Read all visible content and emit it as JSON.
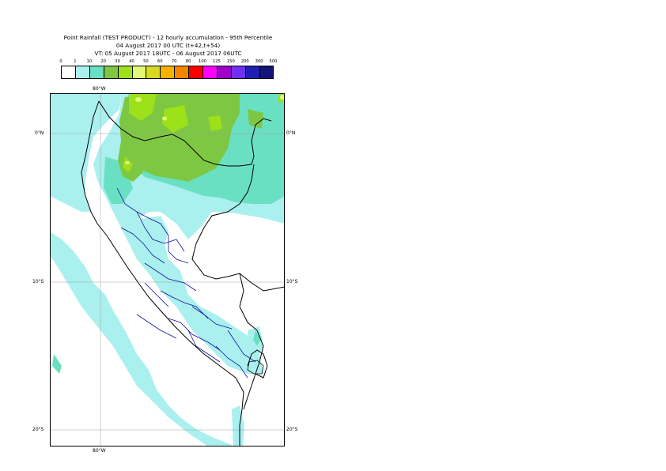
{
  "header": {
    "line1": "Point Rainfall (TEST PRODUCT) - 12 hourly accumulation - 95th Percentile",
    "line2": "04 August 2017 00 UTC (t+42,t+54)",
    "line3": "VT: 05 August 2017 18UTC - 06 August 2017 06UTC"
  },
  "legend": {
    "thresholds": [
      "0",
      "1",
      "10",
      "20",
      "30",
      "40",
      "50",
      "60",
      "70",
      "80",
      "100",
      "125",
      "150",
      "200",
      "300",
      "500"
    ],
    "colors": [
      "#ffffff",
      "#aaf0ef",
      "#6ae0c2",
      "#7ec743",
      "#9ce11a",
      "#e2f978",
      "#d8d920",
      "#f5b300",
      "#f88500",
      "#ff0000",
      "#ff00ff",
      "#a000c8",
      "#7030ef",
      "#2020b0",
      "#141478"
    ]
  },
  "map": {
    "colors": {
      "ocean": "#ffffff",
      "light_cyan": "#aaf0ef",
      "teal": "#6ae0c2",
      "green": "#7ec743",
      "yellow_green": "#9ce11a",
      "light_yellow": "#e2f978",
      "border_black": "#000000",
      "border_blue": "#1010a0",
      "grid": "#a0a0a0"
    },
    "lon_labels": {
      "top": "80°W",
      "bottom": "80°W"
    },
    "lat_labels": {
      "eq_left": "0°N",
      "eq_right": "0°N",
      "s10_left": "10°S",
      "s10_right": "10°S",
      "s20_left": "20°S",
      "s20_right": "20°S"
    }
  }
}
